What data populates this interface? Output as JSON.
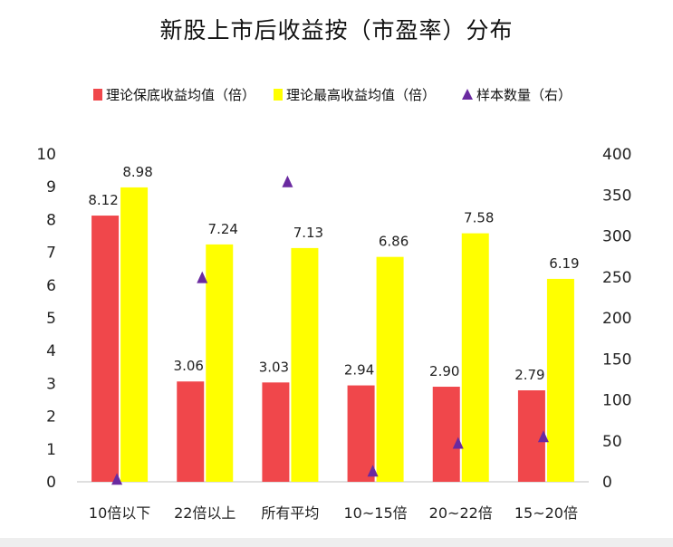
{
  "chart_data": {
    "type": "bar",
    "title": "新股上市后收益按（市盈率）分布",
    "categories": [
      "10倍以下",
      "22倍以上",
      "所有平均",
      "10~15倍",
      "20~22倍",
      "15~20倍"
    ],
    "series": [
      {
        "name": "理论保底收益均值（倍）",
        "type": "bar",
        "axis": "left",
        "color": "#f0474b",
        "values": [
          8.12,
          3.06,
          3.03,
          2.94,
          2.9,
          2.79
        ],
        "labels": [
          "8.12",
          "3.06",
          "3.03",
          "2.94",
          "2.90",
          "2.79"
        ]
      },
      {
        "name": "理论最高收益均值（倍）",
        "type": "bar",
        "axis": "left",
        "color": "#ffff00",
        "values": [
          8.98,
          7.24,
          7.13,
          6.86,
          7.58,
          6.19
        ],
        "labels": [
          "8.98",
          "7.24",
          "7.13",
          "6.86",
          "7.58",
          "6.19"
        ]
      },
      {
        "name": "样本数量（右）",
        "type": "scatter",
        "axis": "right",
        "color": "#6a2aa0",
        "marker": "triangle",
        "values": [
          3,
          249,
          366,
          13,
          47,
          55
        ]
      }
    ],
    "y_left": {
      "min": 0,
      "max": 10,
      "ticks": [
        "0",
        "1",
        "2",
        "3",
        "4",
        "5",
        "6",
        "7",
        "8",
        "9",
        "10"
      ]
    },
    "y_right": {
      "min": 0,
      "max": 400,
      "ticks": [
        "0",
        "50",
        "100",
        "150",
        "200",
        "250",
        "300",
        "350",
        "400"
      ]
    },
    "legend_position": "top",
    "grid": false
  }
}
